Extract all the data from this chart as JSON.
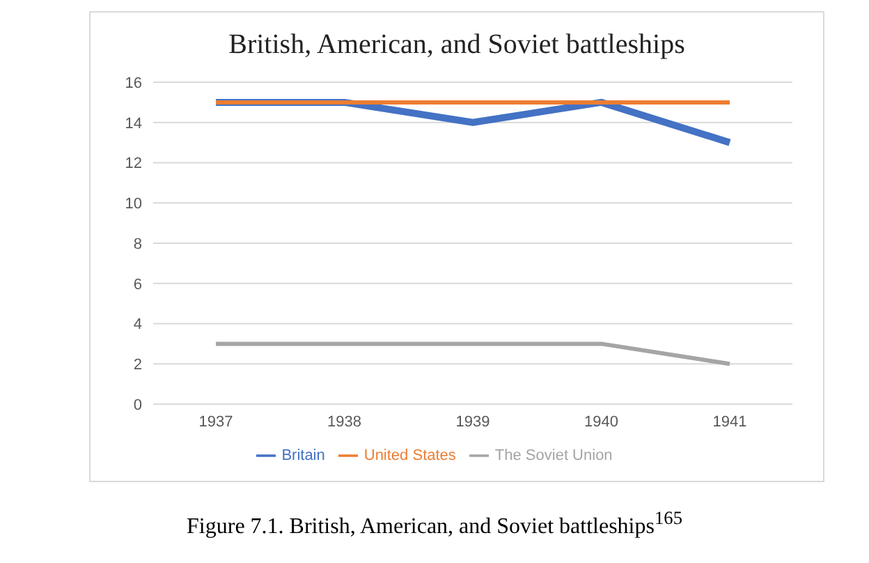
{
  "chart_data": {
    "type": "line",
    "title": "British, American, and Soviet battleships",
    "categories": [
      "1937",
      "1938",
      "1939",
      "1940",
      "1941"
    ],
    "series": [
      {
        "name": "Britain",
        "color": "#4472c4",
        "values": [
          15,
          15,
          14,
          15,
          13
        ]
      },
      {
        "name": "United States",
        "color": "#ed7d31",
        "values": [
          15,
          15,
          15,
          15,
          15
        ]
      },
      {
        "name": "The Soviet Union",
        "color": "#a5a5a5",
        "values": [
          3,
          3,
          3,
          3,
          2
        ]
      }
    ],
    "ylim": [
      0,
      16
    ],
    "yticks": [
      0,
      2,
      4,
      6,
      8,
      10,
      12,
      14,
      16
    ],
    "grid": "y",
    "legend": "bottom",
    "marker": "none",
    "line_style": "solid",
    "annotations": [
      "Figure 7.1. British, American, and Soviet battleships$^{165}$"
    ]
  }
}
